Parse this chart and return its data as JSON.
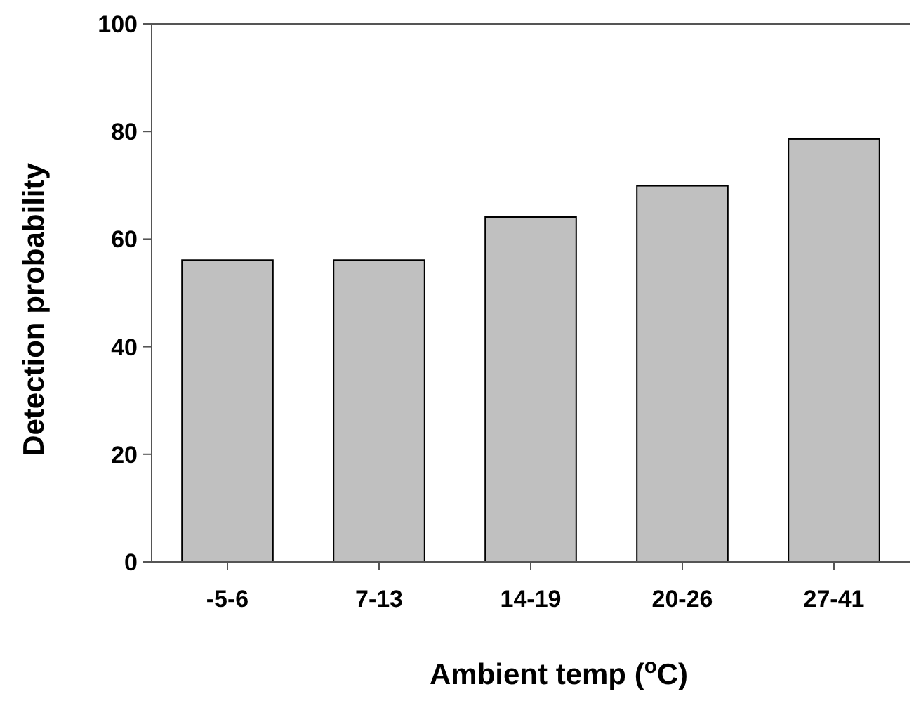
{
  "chart_data": {
    "type": "bar",
    "xlabel": "Ambient temp ($^{o}$C)",
    "ylabel": "Detection probability",
    "categories": [
      "-5-6",
      "7-13",
      "14-19",
      "20-26",
      "27-41"
    ],
    "values": [
      56.1,
      56.1,
      64.1,
      69.9,
      78.6
    ],
    "color": "#c0c0c0",
    "ylim": [
      0,
      100
    ],
    "yticks": [
      0,
      20,
      40,
      60,
      80,
      100
    ]
  }
}
